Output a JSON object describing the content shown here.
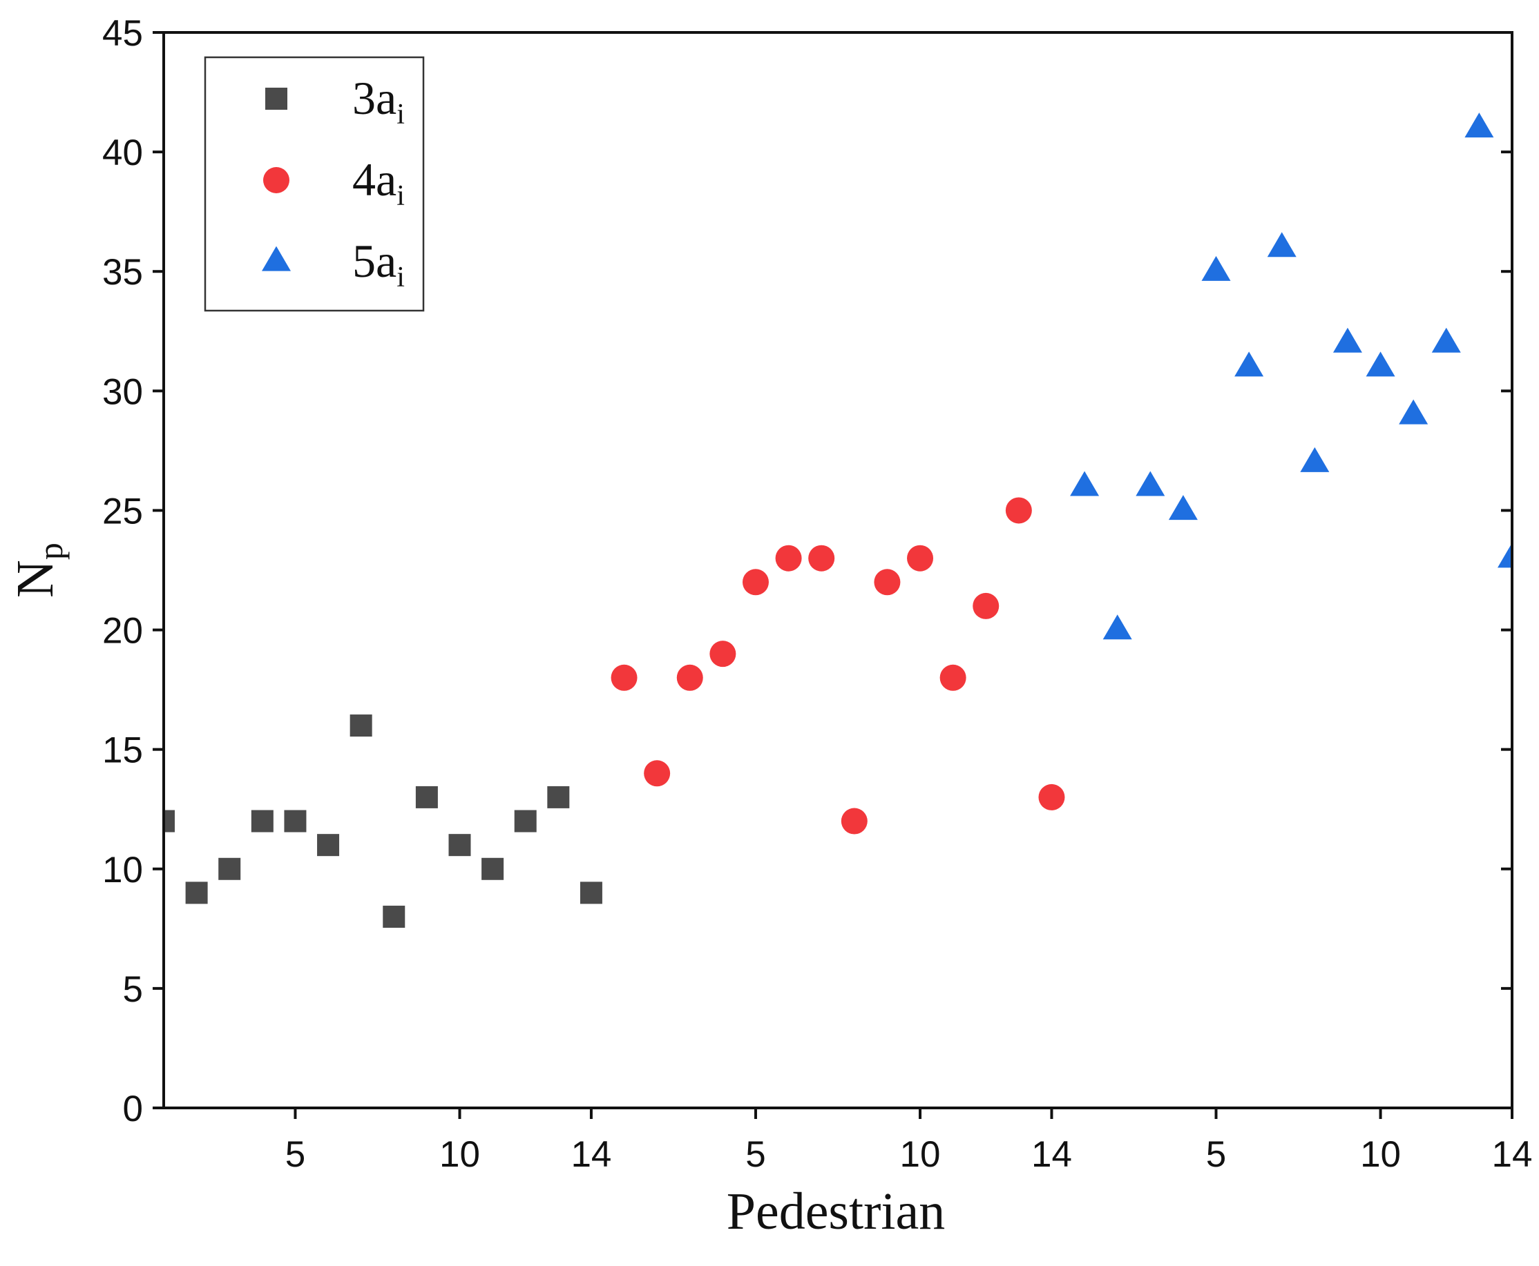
{
  "chart_data": {
    "type": "scatter",
    "title": "",
    "xlabel": "Pedestrian",
    "ylabel": {
      "main": "N",
      "sub": "p"
    },
    "ylim": [
      0,
      45
    ],
    "yticks": [
      0,
      5,
      10,
      15,
      20,
      25,
      30,
      35,
      40,
      45
    ],
    "xlim": [
      1,
      42
    ],
    "xticks": [
      {
        "x": 5,
        "label": "5"
      },
      {
        "x": 10,
        "label": "10"
      },
      {
        "x": 14,
        "label": "14"
      },
      {
        "x": 19,
        "label": "5"
      },
      {
        "x": 24,
        "label": "10"
      },
      {
        "x": 28,
        "label": "14"
      },
      {
        "x": 33,
        "label": "5"
      },
      {
        "x": 38,
        "label": "10"
      },
      {
        "x": 42,
        "label": "14"
      }
    ],
    "legend_position": "top-left",
    "series": [
      {
        "name": "3a",
        "name_sub": "i",
        "marker": "square",
        "color": "#4a4a4a",
        "x": [
          1,
          2,
          3,
          4,
          5,
          6,
          7,
          8,
          9,
          10,
          11,
          12,
          13,
          14
        ],
        "values": [
          12,
          9,
          10,
          12,
          12,
          11,
          16,
          8,
          13,
          11,
          10,
          12,
          13,
          9
        ]
      },
      {
        "name": "4a",
        "name_sub": "i",
        "marker": "circle",
        "color": "#f2373b",
        "x": [
          15,
          16,
          17,
          18,
          19,
          20,
          21,
          22,
          23,
          24,
          25,
          26,
          27,
          28
        ],
        "values": [
          18,
          14,
          18,
          19,
          22,
          23,
          23,
          12,
          22,
          23,
          18,
          21,
          25,
          13
        ]
      },
      {
        "name": "5a",
        "name_sub": "i",
        "marker": "triangle",
        "color": "#1f6fe0",
        "x": [
          29,
          30,
          31,
          32,
          33,
          34,
          35,
          36,
          37,
          38,
          39,
          40,
          41,
          42
        ],
        "values": [
          26,
          20,
          26,
          25,
          35,
          31,
          36,
          27,
          32,
          31,
          29,
          32,
          41,
          23
        ]
      }
    ]
  }
}
